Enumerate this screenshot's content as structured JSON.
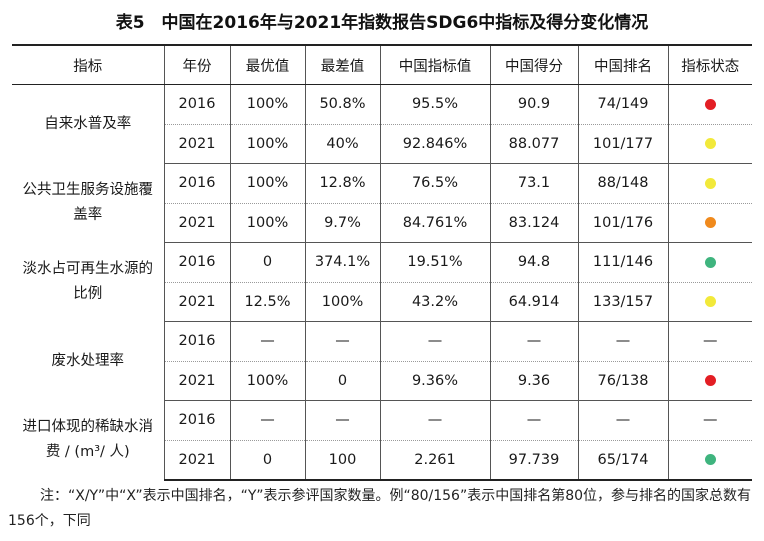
{
  "title": "表5　中国在2016年与2021年指数报告SDG6中指标及得分变化情况",
  "headers": [
    "指标",
    "年份",
    "最优值",
    "最差值",
    "中国指标值",
    "中国得分",
    "中国排名",
    "指标状态"
  ],
  "colors": {
    "red": "#e31e24",
    "yellow": "#f2e93a",
    "orange": "#f08a1d",
    "green": "#3fb47e"
  },
  "groups": [
    {
      "name": "自来水普及率",
      "rows": [
        {
          "year": "2016",
          "best": "100%",
          "worst": "50.8%",
          "value": "95.5%",
          "score": "90.9",
          "rank": "74/149",
          "status": "red"
        },
        {
          "year": "2021",
          "best": "100%",
          "worst": "40%",
          "value": "92.846%",
          "score": "88.077",
          "rank": "101/177",
          "status": "yellow"
        }
      ]
    },
    {
      "name": "公共卫生服务设施覆盖率",
      "rows": [
        {
          "year": "2016",
          "best": "100%",
          "worst": "12.8%",
          "value": "76.5%",
          "score": "73.1",
          "rank": "88/148",
          "status": "yellow"
        },
        {
          "year": "2021",
          "best": "100%",
          "worst": "9.7%",
          "value": "84.761%",
          "score": "83.124",
          "rank": "101/176",
          "status": "orange"
        }
      ]
    },
    {
      "name": "淡水占可再生水源的比例",
      "rows": [
        {
          "year": "2016",
          "best": "0",
          "worst": "374.1%",
          "value": "19.51%",
          "score": "94.8",
          "rank": "111/146",
          "status": "green"
        },
        {
          "year": "2021",
          "best": "12.5%",
          "worst": "100%",
          "value": "43.2%",
          "score": "64.914",
          "rank": "133/157",
          "status": "yellow"
        }
      ]
    },
    {
      "name": "废水处理率",
      "rows": [
        {
          "year": "2016",
          "best": "—",
          "worst": "—",
          "value": "—",
          "score": "—",
          "rank": "—",
          "status_text": "—"
        },
        {
          "year": "2021",
          "best": "100%",
          "worst": "0",
          "value": "9.36%",
          "score": "9.36",
          "rank": "76/138",
          "status": "red"
        }
      ]
    },
    {
      "name": "进口体现的稀缺水消费 / (m³/ 人)",
      "rows": [
        {
          "year": "2016",
          "best": "—",
          "worst": "—",
          "value": "—",
          "score": "—",
          "rank": "—",
          "status_text": "—"
        },
        {
          "year": "2021",
          "best": "0",
          "worst": "100",
          "value": "2.261",
          "score": "97.739",
          "rank": "65/174",
          "status": "green"
        }
      ]
    }
  ],
  "note": "注：“X/Y”中“X”表示中国排名，“Y”表示参评国家数量。例“80/156”表示中国排名第80位，参与排名的国家总数有156个，下同"
}
